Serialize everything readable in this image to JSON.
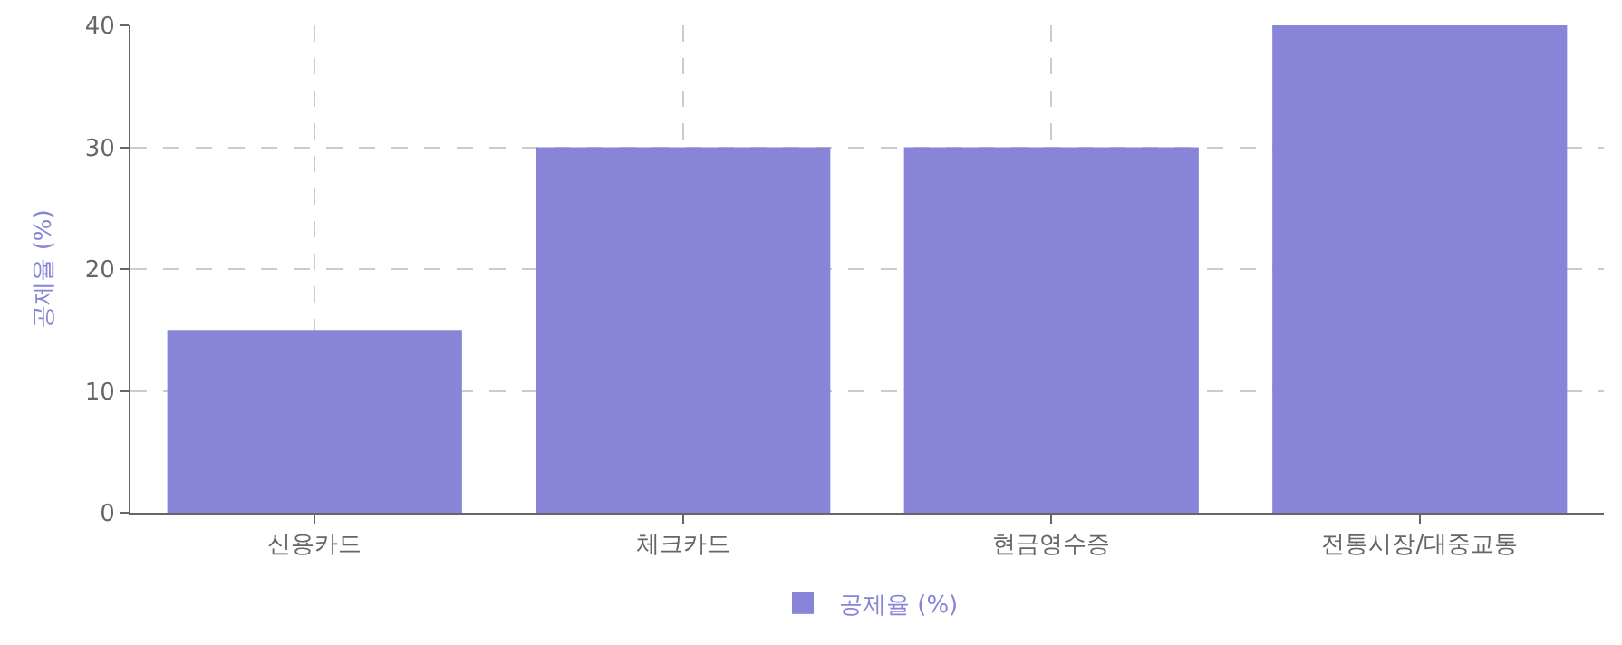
{
  "chart_data": {
    "type": "bar",
    "ylabel": "공제율 (%)",
    "categories": [
      "신용카드",
      "체크카드",
      "현금영수증",
      "전통시장/대중교통"
    ],
    "series": [
      {
        "name": "공제율 (%)",
        "color": "#8884d8",
        "values": [
          15,
          30,
          30,
          40
        ]
      }
    ],
    "ylim": [
      0,
      40
    ],
    "yticks": [
      0,
      10,
      20,
      30,
      40
    ],
    "grid": true,
    "legend": "bottom"
  }
}
